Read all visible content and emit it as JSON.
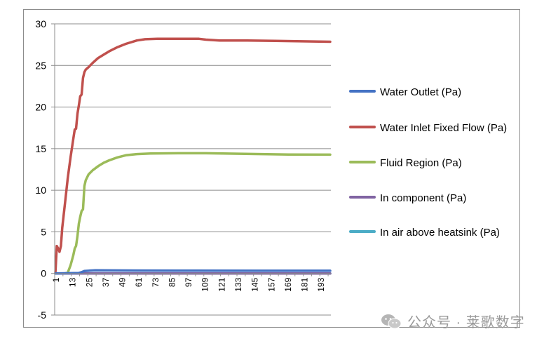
{
  "chart_data": {
    "type": "line",
    "title": "",
    "xlabel": "",
    "ylabel": "",
    "ylim": [
      -5,
      30
    ],
    "yticks": [
      -5,
      0,
      5,
      10,
      15,
      20,
      25,
      30
    ],
    "xticks": [
      "1",
      "13",
      "25",
      "37",
      "49",
      "61",
      "73",
      "85",
      "97",
      "109",
      "121",
      "133",
      "145",
      "157",
      "169",
      "181",
      "193"
    ],
    "xrange": [
      1,
      200
    ],
    "grid": true,
    "legend_position": "right",
    "series": [
      {
        "name": "Water Outlet (Pa)",
        "color": "#4472C4",
        "points": [
          [
            1,
            0
          ],
          [
            18,
            0.05
          ],
          [
            20,
            0.15
          ],
          [
            22,
            0.3
          ],
          [
            30,
            0.38
          ],
          [
            60,
            0.35
          ],
          [
            100,
            0.33
          ],
          [
            150,
            0.32
          ],
          [
            200,
            0.32
          ]
        ]
      },
      {
        "name": "Water Inlet Fixed Flow (Pa)",
        "color": "#C0504D",
        "points": [
          [
            1,
            0
          ],
          [
            2,
            3.3
          ],
          [
            3,
            3.0
          ],
          [
            4,
            2.6
          ],
          [
            5,
            3.3
          ],
          [
            6,
            5.5
          ],
          [
            8,
            8.5
          ],
          [
            10,
            11.5
          ],
          [
            12,
            14.0
          ],
          [
            14,
            16.2
          ],
          [
            15,
            17.3
          ],
          [
            16,
            17.4
          ],
          [
            17,
            19.2
          ],
          [
            18,
            20.2
          ],
          [
            19,
            21.3
          ],
          [
            20,
            21.5
          ],
          [
            21,
            23.5
          ],
          [
            22,
            24.2
          ],
          [
            23,
            24.5
          ],
          [
            25,
            24.8
          ],
          [
            28,
            25.3
          ],
          [
            32,
            25.9
          ],
          [
            36,
            26.3
          ],
          [
            40,
            26.7
          ],
          [
            46,
            27.2
          ],
          [
            52,
            27.6
          ],
          [
            60,
            28.0
          ],
          [
            66,
            28.15
          ],
          [
            75,
            28.2
          ],
          [
            90,
            28.2
          ],
          [
            105,
            28.2
          ],
          [
            110,
            28.1
          ],
          [
            120,
            28.0
          ],
          [
            140,
            28.0
          ],
          [
            160,
            27.95
          ],
          [
            180,
            27.9
          ],
          [
            200,
            27.85
          ]
        ]
      },
      {
        "name": "Fluid Region (Pa)",
        "color": "#9BBB59",
        "points": [
          [
            1,
            0
          ],
          [
            8,
            0
          ],
          [
            10,
            0.1
          ],
          [
            12,
            1.0
          ],
          [
            14,
            2.2
          ],
          [
            15,
            3.0
          ],
          [
            16,
            3.3
          ],
          [
            17,
            4.5
          ],
          [
            18,
            6.0
          ],
          [
            19,
            6.8
          ],
          [
            20,
            7.5
          ],
          [
            21,
            7.7
          ],
          [
            22,
            10.5
          ],
          [
            23,
            11.2
          ],
          [
            25,
            11.9
          ],
          [
            28,
            12.4
          ],
          [
            32,
            12.9
          ],
          [
            36,
            13.3
          ],
          [
            40,
            13.6
          ],
          [
            46,
            13.95
          ],
          [
            52,
            14.2
          ],
          [
            60,
            14.35
          ],
          [
            70,
            14.42
          ],
          [
            90,
            14.45
          ],
          [
            110,
            14.45
          ],
          [
            130,
            14.4
          ],
          [
            150,
            14.35
          ],
          [
            170,
            14.3
          ],
          [
            200,
            14.28
          ]
        ]
      },
      {
        "name": "In component (Pa)",
        "color": "#8064A2",
        "points": [
          [
            1,
            0
          ],
          [
            200,
            0
          ]
        ]
      },
      {
        "name": "In air above heatsink (Pa)",
        "color": "#4BACC6",
        "points": [
          [
            1,
            0
          ],
          [
            200,
            0
          ]
        ]
      }
    ]
  },
  "watermark": {
    "text": "公众号 · 莱歌数字"
  }
}
